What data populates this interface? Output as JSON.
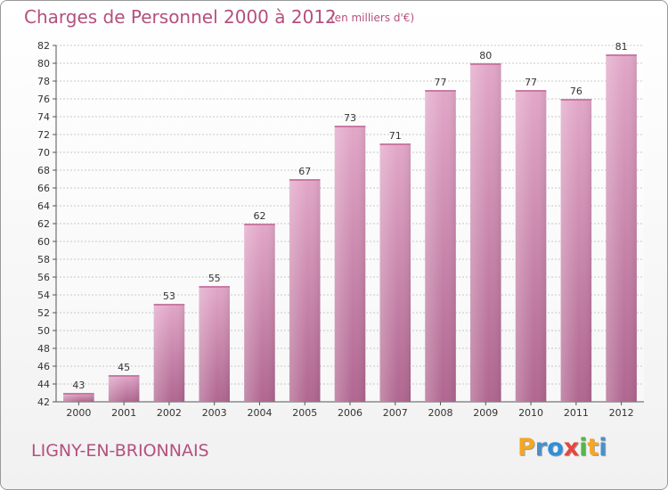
{
  "header": {
    "title": "Charges de Personnel 2000 à 2012",
    "unit_note": "(en milliers d'€)"
  },
  "footer": {
    "place": "LIGNY-EN-BRIONNAIS",
    "logo_text": "Proxiti"
  },
  "colors": {
    "accent_text": "#b4507e",
    "bar_fill": "#d993b8",
    "bar_dark": "#b06690",
    "grid": "#c8c8c8"
  },
  "chart_data": {
    "type": "bar",
    "title": "Charges de Personnel 2000 à 2012",
    "subtitle": "(en milliers d'€)",
    "xlabel": "",
    "ylabel": "",
    "categories": [
      "2000",
      "2001",
      "2002",
      "2003",
      "2004",
      "2005",
      "2006",
      "2007",
      "2008",
      "2009",
      "2010",
      "2011",
      "2012"
    ],
    "values": [
      43,
      45,
      53,
      55,
      62,
      67,
      73,
      71,
      77,
      80,
      77,
      76,
      81
    ],
    "ylim": [
      42,
      82
    ],
    "yticks": [
      42,
      44,
      46,
      48,
      50,
      52,
      54,
      56,
      58,
      60,
      62,
      64,
      66,
      68,
      70,
      72,
      74,
      76,
      78,
      80,
      82
    ],
    "grid": true,
    "legend": "none"
  }
}
